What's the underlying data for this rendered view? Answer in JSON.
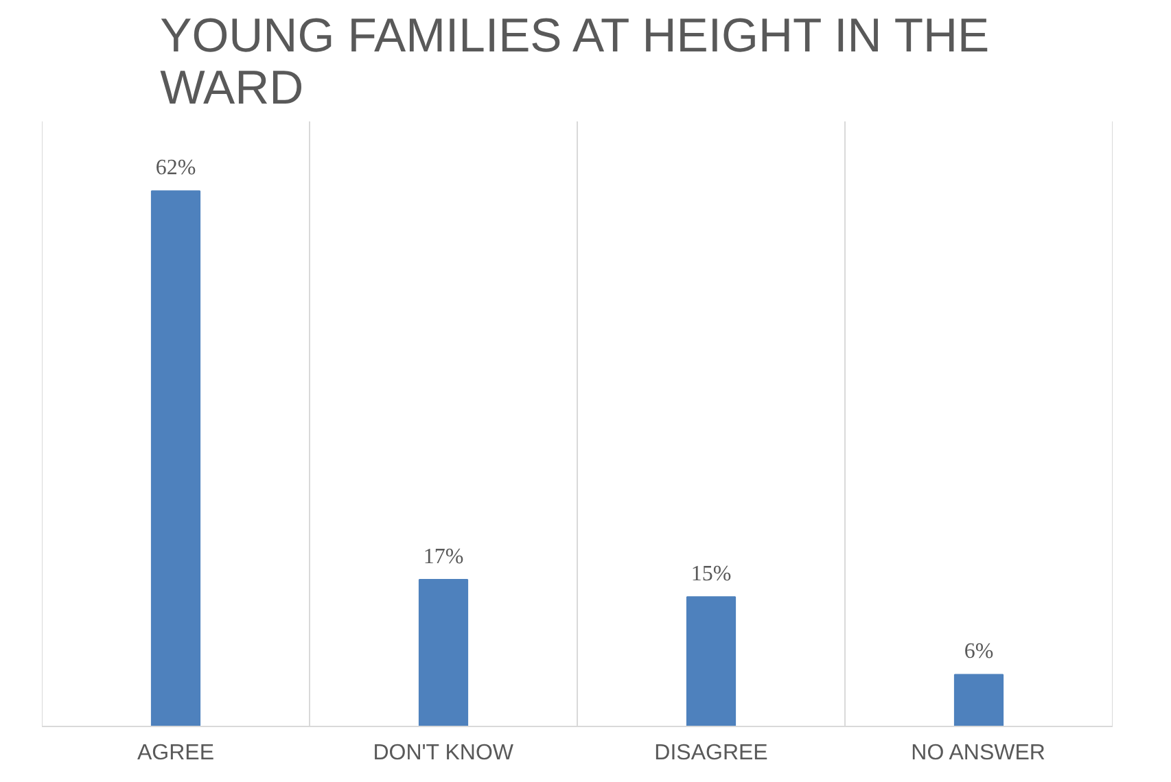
{
  "chart_data": {
    "type": "bar",
    "title": "YOUNG FAMILIES AT HEIGHT IN THE WARD",
    "categories": [
      "AGREE",
      "DON'T KNOW",
      "DISAGREE",
      "NO ANSWER"
    ],
    "values": [
      62,
      17,
      15,
      6
    ],
    "value_labels": [
      "62%",
      "17%",
      "15%",
      "6%"
    ],
    "color": "#4e81bd",
    "grid": "x"
  }
}
